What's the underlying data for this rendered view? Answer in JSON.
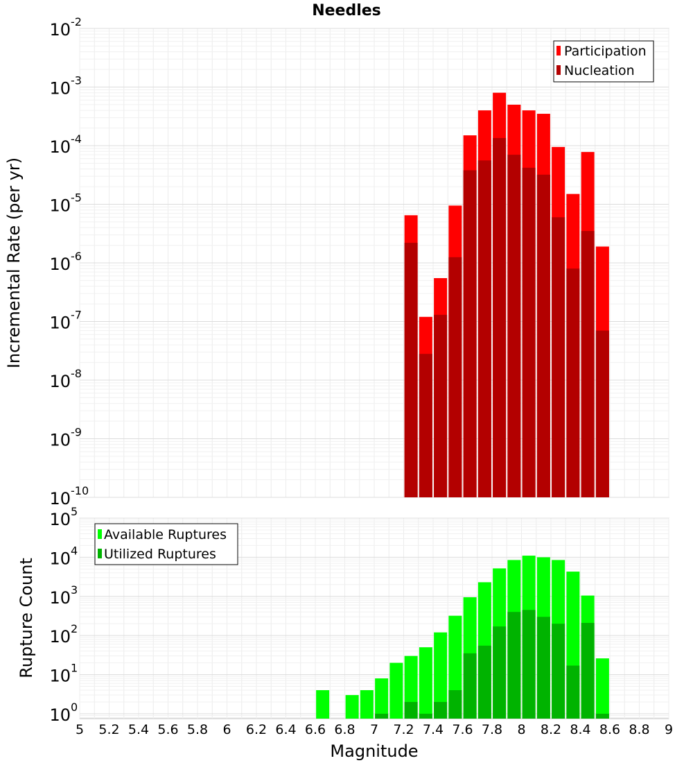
{
  "chart_data": [
    {
      "type": "bar",
      "title": "Needles",
      "xlabel": "",
      "ylabel": "Incremental Rate (per yr)",
      "yscale": "log",
      "ylim": [
        1e-10,
        0.01
      ],
      "xlim": [
        5,
        9
      ],
      "ytick_exponents": [
        -10,
        -9,
        -8,
        -7,
        -6,
        -5,
        -4,
        -3,
        -2
      ],
      "legend": {
        "position": "top-right",
        "entries": [
          "Participation",
          "Nucleation"
        ]
      },
      "colors": {
        "Participation": "#ff0000",
        "Nucleation": "#b30000"
      },
      "x": [
        7.25,
        7.35,
        7.45,
        7.55,
        7.65,
        7.75,
        7.85,
        7.95,
        8.05,
        8.15,
        8.25,
        8.35,
        8.45,
        8.55
      ],
      "series": [
        {
          "name": "Participation",
          "values": [
            6.5e-06,
            1.2e-07,
            5.5e-07,
            9.5e-06,
            0.00015,
            0.0004,
            0.0008,
            0.0005,
            0.0004,
            0.00035,
            9.5e-05,
            1.5e-05,
            7.8e-05,
            1.9e-06
          ]
        },
        {
          "name": "Nucleation",
          "values": [
            2.2e-06,
            2.8e-08,
            1.3e-07,
            1.25e-06,
            3.8e-05,
            5.6e-05,
            0.000135,
            7e-05,
            4.2e-05,
            3.2e-05,
            6e-06,
            8e-07,
            3.5e-06,
            7e-08
          ]
        }
      ],
      "grid": true
    },
    {
      "type": "bar",
      "title": "",
      "xlabel": "Magnitude",
      "ylabel": "Rupture Count",
      "yscale": "log",
      "ylim": [
        0.75,
        100000.0
      ],
      "xlim": [
        5,
        9
      ],
      "ytick_exponents": [
        0,
        1,
        2,
        3,
        4,
        5
      ],
      "xticks": [
        "5",
        "5.2",
        "5.4",
        "5.6",
        "5.8",
        "6",
        "6.2",
        "6.4",
        "6.6",
        "6.8",
        "7",
        "7.2",
        "7.4",
        "7.6",
        "7.8",
        "8",
        "8.2",
        "8.4",
        "8.6",
        "8.8",
        "9"
      ],
      "legend": {
        "position": "top-left",
        "entries": [
          "Available Ruptures",
          "Utilized Ruptures"
        ]
      },
      "colors": {
        "Available Ruptures": "#00ff00",
        "Utilized Ruptures": "#00b300"
      },
      "x": [
        6.65,
        6.85,
        6.95,
        7.05,
        7.15,
        7.25,
        7.35,
        7.45,
        7.55,
        7.65,
        7.75,
        7.85,
        7.95,
        8.05,
        8.15,
        8.25,
        8.35,
        8.45,
        8.55
      ],
      "series": [
        {
          "name": "Available Ruptures",
          "values": [
            4,
            3,
            4,
            8,
            20,
            30,
            50,
            120,
            320,
            950,
            2300,
            5200,
            8500,
            11000,
            10000,
            8500,
            4300,
            1050,
            26
          ]
        },
        {
          "name": "Utilized Ruptures",
          "values": [
            null,
            null,
            null,
            1,
            null,
            2,
            1,
            2,
            4,
            35,
            55,
            170,
            400,
            450,
            300,
            200,
            17,
            210,
            1
          ]
        }
      ],
      "grid": true
    }
  ]
}
